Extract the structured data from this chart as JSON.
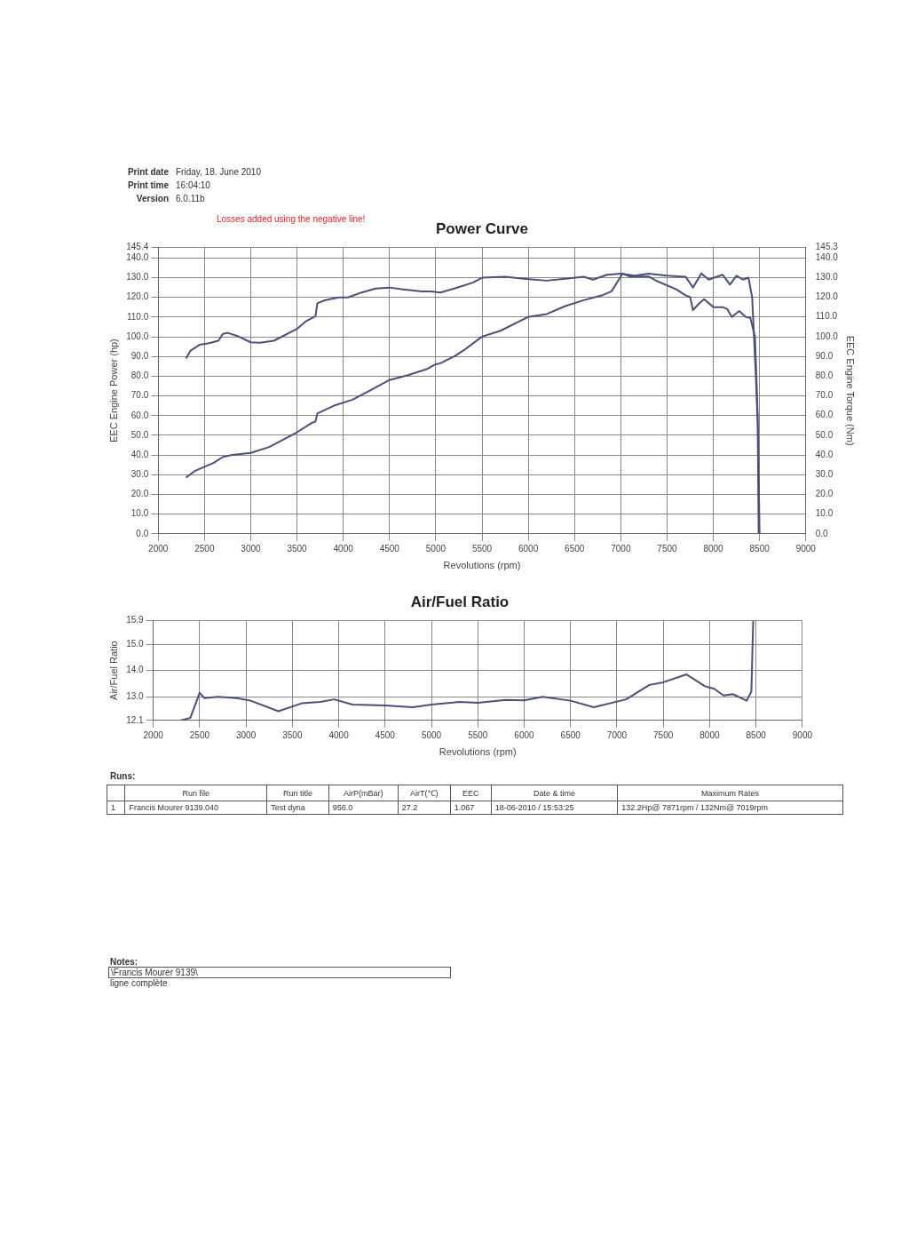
{
  "chart_data": [
    {
      "type": "line",
      "title": "Power Curve",
      "xlabel": "Revolutions (rpm)",
      "ylabel": "EEC Engine Power (hp)",
      "y2label": "EEC Engine Torque (Nm)",
      "grid": true,
      "annotations": [
        "Print date",
        "Friday, 18. June 2010",
        "Print time",
        "16:04:10",
        "Version",
        "6.0.11b",
        "Losses added using the negative line!"
      ],
      "xlim": [
        2000,
        9000
      ],
      "xticks": [
        2000,
        2500,
        3000,
        3500,
        4000,
        4500,
        5000,
        5500,
        6000,
        6500,
        7000,
        7500,
        8000,
        8500,
        9000
      ],
      "ylim": [
        0,
        145.4
      ],
      "yticks": [
        {
          "value": 0,
          "label": "0.0"
        },
        {
          "value": 10,
          "label": "10.0"
        },
        {
          "value": 20,
          "label": "20.0"
        },
        {
          "value": 30,
          "label": "30.0"
        },
        {
          "value": 40,
          "label": "40.0"
        },
        {
          "value": 50,
          "label": "50.0"
        },
        {
          "value": 60,
          "label": "60.0"
        },
        {
          "value": 70,
          "label": "70.0"
        },
        {
          "value": 80,
          "label": "80.0"
        },
        {
          "value": 90,
          "label": "90.0"
        },
        {
          "value": 100,
          "label": "100.0"
        },
        {
          "value": 110,
          "label": "110.0"
        },
        {
          "value": 120,
          "label": "120.0"
        },
        {
          "value": 130,
          "label": "130.0"
        },
        {
          "value": 140,
          "label": "140.0"
        },
        145.4
      ],
      "y2lim": [
        0,
        145.3
      ],
      "y2ticks": [
        {
          "value": 0,
          "label": "0.0"
        },
        {
          "value": 10,
          "label": "10.0"
        },
        {
          "value": 20,
          "label": "20.0"
        },
        {
          "value": 30,
          "label": "30.0"
        },
        {
          "value": 40,
          "label": "40.0"
        },
        {
          "value": 50,
          "label": "50.0"
        },
        {
          "value": 60,
          "label": "60.0"
        },
        {
          "value": 70,
          "label": "70.0"
        },
        {
          "value": 80,
          "label": "80.0"
        },
        {
          "value": 90,
          "label": "90.0"
        },
        {
          "value": 100,
          "label": "100.0"
        },
        {
          "value": 110,
          "label": "110.0"
        },
        {
          "value": 120,
          "label": "120.0"
        },
        {
          "value": 130,
          "label": "130.0"
        },
        {
          "value": 140,
          "label": "140.0"
        },
        145.3
      ],
      "series": [
        {
          "color": "#4a5178",
          "x": [
            2300,
            2350,
            2450,
            2550,
            2650,
            2700,
            2750,
            2850,
            3000,
            3100,
            3250,
            3500,
            3600,
            3700,
            3720,
            3800,
            3950,
            4050,
            4200,
            4350,
            4500,
            4650,
            4850,
            4950,
            5050,
            5200,
            5400,
            5500,
            5750,
            5950,
            6200,
            6400,
            6600,
            6700,
            6850,
            7000,
            7150,
            7300,
            7500,
            7700,
            7780,
            7871,
            7950,
            8100,
            8180,
            8250,
            8320,
            8380,
            8420,
            8460,
            8480,
            8490
          ],
          "values": [
            89,
            93,
            96,
            96.8,
            98,
            101.5,
            102,
            100.5,
            97.2,
            97,
            98,
            104,
            108,
            110.5,
            117,
            118.5,
            120,
            120,
            122.5,
            124.5,
            125,
            124,
            123,
            123,
            122.5,
            124.5,
            127.5,
            130,
            130.5,
            129.5,
            128.5,
            129.5,
            130.5,
            129,
            131.5,
            132,
            131,
            132,
            131,
            130.5,
            125,
            132.2,
            129,
            131.5,
            126.5,
            131,
            129,
            130,
            120,
            80,
            55,
            0
          ]
        },
        {
          "color": "#4a5178",
          "axis": "y2",
          "x": [
            2300,
            2400,
            2500,
            2600,
            2700,
            2800,
            3000,
            3200,
            3400,
            3500,
            3650,
            3700,
            3720,
            3900,
            4100,
            4300,
            4500,
            4700,
            4900,
            5000,
            5050,
            5200,
            5300,
            5500,
            5700,
            6000,
            6200,
            6400,
            6600,
            6800,
            6900,
            7019,
            7100,
            7300,
            7400,
            7600,
            7700,
            7750,
            7780,
            7850,
            7900,
            8000,
            8100,
            8150,
            8200,
            8280,
            8350,
            8400,
            8450,
            8480,
            8500
          ],
          "values": [
            28.5,
            32,
            34,
            36,
            39,
            40,
            41,
            44,
            49,
            51.5,
            56,
            57,
            61,
            65,
            68,
            73,
            78,
            80.5,
            83.5,
            86,
            86.5,
            90,
            93,
            100,
            103,
            110,
            111.5,
            115.5,
            118.5,
            121,
            123,
            132,
            130.5,
            130.5,
            128,
            124,
            121,
            120,
            113.5,
            117,
            119,
            115,
            115,
            114,
            110,
            113,
            110,
            109.5,
            100,
            60,
            0
          ]
        }
      ]
    },
    {
      "type": "line",
      "title": "Air/Fuel Ratio",
      "xlabel": "Revolutions (rpm)",
      "ylabel": "Air/Fuel Ratio",
      "grid": true,
      "annotations": [
        "Runs:",
        "Run file",
        "Run title",
        "AirP(mBar)",
        "AirT(℃)",
        "EEC",
        "Date & time",
        "Maximum Rates",
        "1",
        "Francis Mourer 9139.040",
        "Test dyna",
        "956.0",
        "27.2",
        "1.067",
        "18-06-2010 / 15:53:25",
        "132.2Hp@ 7871rpm / 132Nm@ 7019rpm",
        "Notes:",
        "\\Francis Mourer 9139\\",
        "ligne complète"
      ],
      "xlim": [
        2000,
        9000
      ],
      "xticks": [
        2000,
        2500,
        3000,
        3500,
        4000,
        4500,
        5000,
        5500,
        6000,
        6500,
        7000,
        7500,
        8000,
        8500,
        9000
      ],
      "ylim": [
        12.1,
        15.9
      ],
      "yticks": [
        12.1,
        {
          "value": 13,
          "label": "13.0"
        },
        {
          "value": 14,
          "label": "14.0"
        },
        {
          "value": 15,
          "label": "15.0"
        },
        15.9
      ],
      "series": [
        {
          "color": "#4a5178",
          "x": [
            2300,
            2400,
            2500,
            2550,
            2700,
            2900,
            3050,
            3350,
            3600,
            3800,
            3950,
            4150,
            4500,
            4800,
            5000,
            5300,
            5500,
            5800,
            6000,
            6200,
            6500,
            6750,
            7100,
            7350,
            7500,
            7750,
            7950,
            8050,
            8150,
            8250,
            8400,
            8450,
            8470
          ],
          "values": [
            12.1,
            12.2,
            13.15,
            12.95,
            13,
            12.95,
            12.85,
            12.45,
            12.75,
            12.8,
            12.9,
            12.7,
            12.67,
            12.6,
            12.7,
            12.8,
            12.77,
            12.88,
            12.86,
            13,
            12.85,
            12.6,
            12.9,
            13.45,
            13.55,
            13.85,
            13.4,
            13.3,
            13.05,
            13.1,
            12.85,
            13.2,
            15.9
          ]
        }
      ]
    }
  ]
}
